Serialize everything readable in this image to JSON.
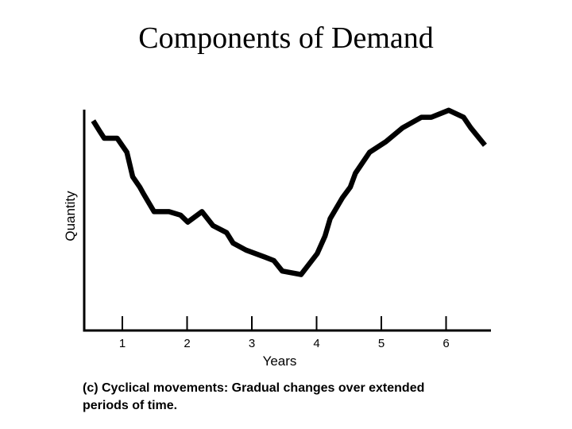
{
  "title": "Components of Demand",
  "caption": "(c) Cyclical movements: Gradual changes over extended periods of time.",
  "chart_data": {
    "type": "line",
    "title": "Components of Demand",
    "xlabel": "Years",
    "ylabel": "Quantity",
    "x_ticks": [
      "1",
      "2",
      "3",
      "4",
      "5",
      "6"
    ],
    "xlim": [
      0.4,
      6.7
    ],
    "ylim": [
      0,
      100
    ],
    "grid": false,
    "legend": "none",
    "line_color": "#000000",
    "series": [
      {
        "x": [
          0.55,
          0.65,
          0.72,
          0.82,
          0.92,
          1.07,
          1.16,
          1.27,
          1.33,
          1.49,
          1.55,
          1.72,
          1.9,
          2.01,
          2.23,
          2.4,
          2.61,
          2.71,
          2.91,
          3.2,
          3.34,
          3.47,
          3.76,
          4.01,
          4.13,
          4.21,
          4.4,
          4.52,
          4.6,
          4.82,
          5.07,
          5.33,
          5.62,
          5.77,
          6.04,
          6.27,
          6.38,
          6.6
        ],
        "y": [
          60,
          57,
          55,
          55,
          55,
          51,
          44,
          41,
          39,
          34,
          34,
          34,
          33,
          31,
          34,
          30,
          28,
          25,
          23,
          21,
          20,
          17,
          16,
          22,
          27,
          32,
          38,
          41,
          45,
          51,
          54,
          58,
          61,
          61,
          63,
          61,
          58,
          53
        ]
      }
    ]
  }
}
